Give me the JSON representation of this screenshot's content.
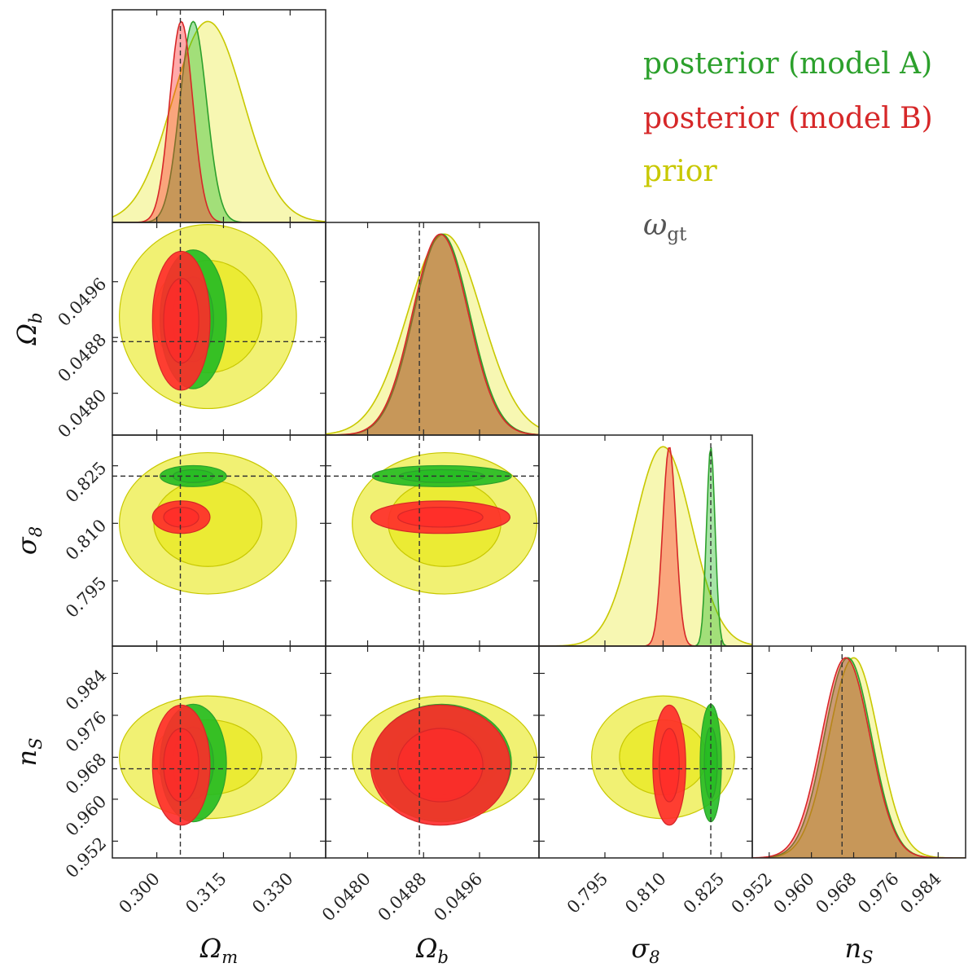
{
  "chart_data": {
    "type": "corner",
    "parameters": [
      {
        "key": "om",
        "label": "Ω",
        "sub": "m",
        "range": [
          0.29,
          0.338
        ],
        "ticks": [
          0.3,
          0.315,
          0.33
        ],
        "tick_labels": [
          "0.300",
          "0.315",
          "0.330"
        ],
        "truth": 0.3053
      },
      {
        "key": "ob",
        "label": "Ω",
        "sub": "b",
        "range": [
          0.0474,
          0.05045
        ],
        "ticks": [
          0.048,
          0.0488,
          0.0496
        ],
        "tick_labels": [
          "0.0480",
          "0.0488",
          "0.0496"
        ],
        "truth": 0.04874
      },
      {
        "key": "s8",
        "label": "σ",
        "sub": "8",
        "range": [
          0.778,
          0.833
        ],
        "ticks": [
          0.795,
          0.81,
          0.825
        ],
        "tick_labels": [
          "0.795",
          "0.810",
          "0.825"
        ],
        "truth": 0.8223
      },
      {
        "key": "ns",
        "label": "n",
        "sub": "S",
        "range": [
          0.9488,
          0.9892
        ],
        "ticks": [
          0.952,
          0.96,
          0.968,
          0.976,
          0.984
        ],
        "tick_labels": [
          "0.952",
          "0.960",
          "0.968",
          "0.976",
          "0.984"
        ],
        "truth": 0.9658
      }
    ],
    "series": [
      {
        "name": "posterior (model A)",
        "color": "#2ca02c",
        "fill": "#22bb22",
        "mean": {
          "om": 0.3082,
          "ob": 0.04906,
          "s8": 0.8223,
          "ns": 0.9669
        },
        "sigma": {
          "om": 0.003,
          "ob": 0.0004,
          "s8": 0.0011,
          "ns": 0.0045
        }
      },
      {
        "name": "posterior (model B)",
        "color": "#d62728",
        "fill": "#ff2a2a",
        "mean": {
          "om": 0.3055,
          "ob": 0.04904,
          "s8": 0.8116,
          "ns": 0.9665
        },
        "sigma": {
          "om": 0.0026,
          "ob": 0.0004,
          "s8": 0.0017,
          "ns": 0.0046
        }
      },
      {
        "name": "prior",
        "color": "#c8c800",
        "fill": "#e6e600",
        "mean": {
          "om": 0.3115,
          "ob": 0.0491,
          "s8": 0.81,
          "ns": 0.968
        },
        "sigma": {
          "om": 0.008,
          "ob": 0.00053,
          "s8": 0.0074,
          "ns": 0.0047
        }
      }
    ],
    "truth_label": "ω",
    "truth_sub": "gt"
  }
}
